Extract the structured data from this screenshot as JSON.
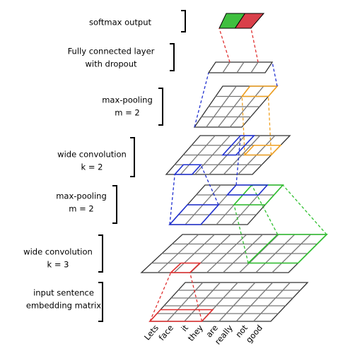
{
  "layers": [
    {
      "lines": [
        "softmax output"
      ]
    },
    {
      "lines": [
        "Fully connected layer",
        "with dropout"
      ]
    },
    {
      "lines": [
        "max-pooling",
        "m = 2"
      ]
    },
    {
      "lines": [
        "wide convolution",
        "k = 2"
      ]
    },
    {
      "lines": [
        "max-pooling",
        "m = 2"
      ]
    },
    {
      "lines": [
        "wide convolution",
        "k = 3"
      ]
    },
    {
      "lines": [
        "input sentence",
        "embedding matrix"
      ]
    }
  ],
  "words": [
    "Lets",
    "face",
    "it",
    "they",
    "are",
    "really",
    "not",
    "good"
  ]
}
